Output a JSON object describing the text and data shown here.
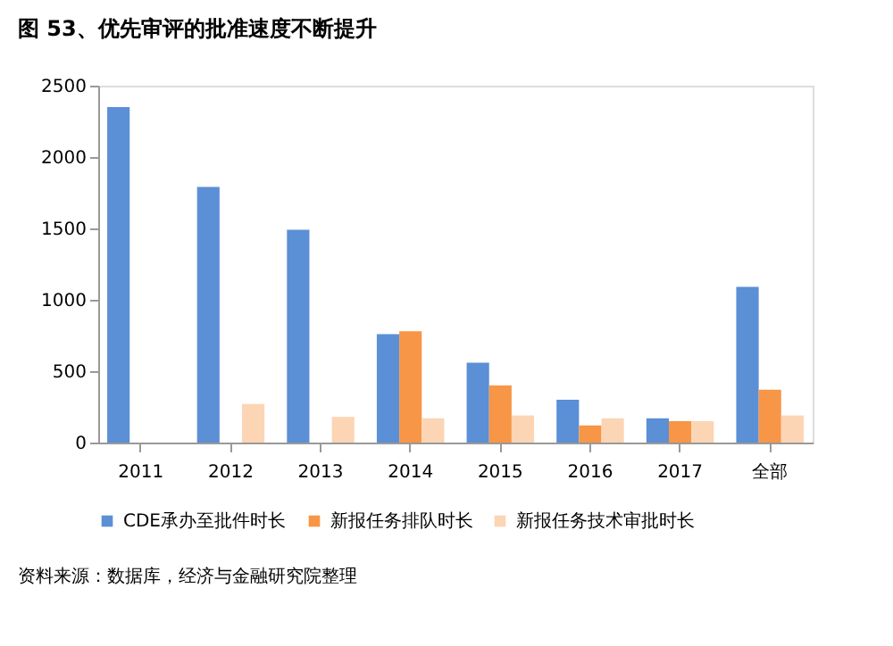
{
  "chart_data": {
    "type": "bar",
    "title": "图 53、优先审评的批准速度不断提升",
    "categories": [
      "2011",
      "2012",
      "2013",
      "2014",
      "2015",
      "2016",
      "2017",
      "全部"
    ],
    "series": [
      {
        "name": "CDE承办至批件时长",
        "color": "#5b8fd6",
        "values": [
          2350,
          1790,
          1490,
          760,
          560,
          300,
          170,
          1090
        ]
      },
      {
        "name": "新报任务排队时长",
        "color": "#f79646",
        "values": [
          null,
          null,
          null,
          780,
          400,
          120,
          150,
          370
        ]
      },
      {
        "name": "新报任务技术审批时长",
        "color": "#fcd5b5",
        "values": [
          null,
          270,
          180,
          170,
          190,
          170,
          150,
          190
        ]
      }
    ],
    "ylim": [
      0,
      2500
    ],
    "yticks": [
      0,
      500,
      1000,
      1500,
      2000,
      2500
    ],
    "grid": false,
    "legend": "bottom",
    "annotations": [
      "资料来源：数据库，经济与金融研究院整理"
    ]
  }
}
